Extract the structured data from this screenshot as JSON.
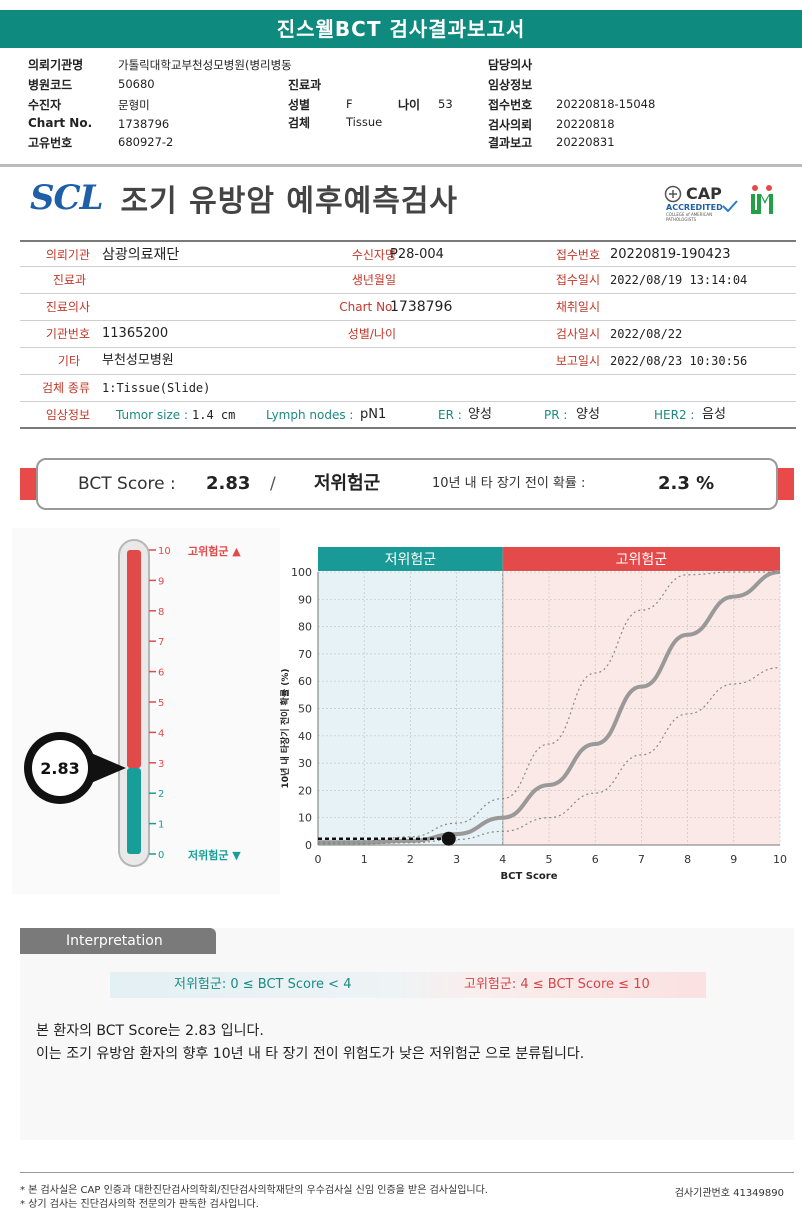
{
  "header": {
    "title": "진스웰BCT 검사결과보고서"
  },
  "info": {
    "hospital_label": "의뢰기관명",
    "hospital_value": "가톨릭대학교부천성모병원(병리병동",
    "code_label": "병원코드",
    "code_value": "50680",
    "patient_label": "수진자",
    "patient_value": "문형미",
    "chart_label": "Chart No.",
    "chart_value": "1738796",
    "unique_label": "고유번호",
    "unique_value": "680927-2",
    "dept_label": "진료과",
    "sex_label": "성별",
    "sex_value": "F",
    "age_label": "나이",
    "age_value": "53",
    "specimen_label": "검체",
    "specimen_value": "Tissue",
    "doctor_label": "담당의사",
    "clinical_label": "임상정보",
    "receipt_label": "접수번호",
    "receipt_value": "20220818-15048",
    "request_label": "검사의뢰",
    "request_value": "20220818",
    "result_label": "결과보고",
    "result_value": "20220831"
  },
  "brand": {
    "logo": "SCL",
    "report_title": "조기 유방암 예후예측검사",
    "cap_text": "CAP",
    "cap_sub": "ACCREDITED",
    "cap_tiny": "COLLEGE of AMERICAN PATHOLOGISTS"
  },
  "details": {
    "r1": {
      "l1": "의뢰기관",
      "v1": "삼광의료재단",
      "l2": "수신자명",
      "v2": "P28-004",
      "l3": "접수번호",
      "v3": "20220819-190423"
    },
    "r2": {
      "l1": "진료과",
      "v1": "",
      "l2": "생년월일",
      "v2": "",
      "l3": "접수일시",
      "v3": "2022/08/19 13:14:04"
    },
    "r3": {
      "l1": "진료의사",
      "v1": "",
      "l2": "Chart No.",
      "v2": "1738796",
      "l3": "채취일시",
      "v3": ""
    },
    "r4": {
      "l1": "기관번호",
      "v1": "11365200",
      "l2": "성별/나이",
      "v2": "",
      "l3": "검사일시",
      "v3": "2022/08/22"
    },
    "r5": {
      "l1": "기타",
      "v1": "부천성모병원",
      "l3": "보고일시",
      "v3": "2022/08/23 10:30:56"
    },
    "r6": {
      "l1": "검체 종류",
      "v1": "1:Tissue(Slide)"
    },
    "r7": {
      "l1": "임상정보",
      "tumor_label": "Tumor size :",
      "tumor_value": "1.4 cm",
      "lymph_label": "Lymph nodes :",
      "lymph_value": "pN1",
      "er_label": "ER :",
      "er_value": "양성",
      "pr_label": "PR :",
      "pr_value": "양성",
      "her2_label": "HER2 :",
      "her2_value": "음성"
    }
  },
  "score": {
    "label": "BCT Score :",
    "value": "2.83",
    "sep": "/",
    "group": "저위험군",
    "prob_label": "10년 내 타 장기 전이 확률 :",
    "prob_value": "2.3 %"
  },
  "gauge": {
    "value": 2.83,
    "value_text": "2.83",
    "max": 10,
    "ticks": [
      "0",
      "1",
      "2",
      "3",
      "4",
      "5",
      "6",
      "7",
      "8",
      "9",
      "10"
    ],
    "high_label": "고위험군 ▲",
    "low_label": "저위험군 ▼",
    "low_color": "#179e99",
    "high_color": "#e24a4a"
  },
  "chart_data": {
    "type": "line",
    "xlabel": "BCT Score",
    "ylabel": "10년 내 타장기 전이 확률 (%)",
    "xlim": [
      0,
      10
    ],
    "ylim": [
      0,
      100
    ],
    "x_ticks": [
      "0",
      "1",
      "2",
      "3",
      "4",
      "5",
      "6",
      "7",
      "8",
      "9",
      "10"
    ],
    "y_ticks": [
      "0",
      "10",
      "20",
      "30",
      "40",
      "50",
      "60",
      "70",
      "80",
      "90",
      "100"
    ],
    "grid": true,
    "zones": [
      {
        "label": "저위험군",
        "from": 0,
        "to": 4,
        "color": "#1a9a96"
      },
      {
        "label": "고위험군",
        "from": 4,
        "to": 10,
        "color": "#e54a4a"
      }
    ],
    "series": [
      {
        "x": [
          0,
          1,
          2,
          3,
          4,
          5,
          6,
          7,
          8,
          9,
          10
        ],
        "values": [
          1,
          1,
          1.5,
          4,
          10,
          22,
          37,
          58,
          77,
          91,
          100
        ],
        "style": "solid"
      },
      {
        "x": [
          0,
          1,
          2,
          3,
          4,
          5,
          6,
          7,
          8,
          9,
          10
        ],
        "values": [
          1,
          1.5,
          3,
          8,
          17,
          37,
          63,
          86,
          99,
          100,
          100
        ],
        "style": "dotted"
      },
      {
        "x": [
          0,
          1,
          2,
          3,
          4,
          5,
          6,
          7,
          8,
          9,
          10
        ],
        "values": [
          0.5,
          0.5,
          0.8,
          2,
          5,
          10,
          19,
          33,
          48,
          59,
          65
        ],
        "style": "dotted"
      }
    ],
    "marker": {
      "x": 2.83,
      "y": 2.3
    }
  },
  "interpretation": {
    "tab": "Interpretation",
    "low_range": "저위험군: 0 ≤ BCT Score < 4",
    "high_range": "고위험군: 4 ≤ BCT Score ≤ 10",
    "line1": "본 환자의 BCT Score는 2.83 입니다.",
    "line2": "이는 조기 유방암 환자의 향후 10년 내 타 장기 전이 위험도가 낮은 저위험군 으로 분류됩니다."
  },
  "footer": {
    "note1": "* 본 검사실은 CAP 인증과 대한진단검사의학회/진단검사의학재단의 우수검사실 신임 인증을 받은 검사실입니다.",
    "note2": "* 상기 검사는 진단검사의학 전문의가 판독한 검사입니다.",
    "institution": "검사기관번호 41349890"
  }
}
